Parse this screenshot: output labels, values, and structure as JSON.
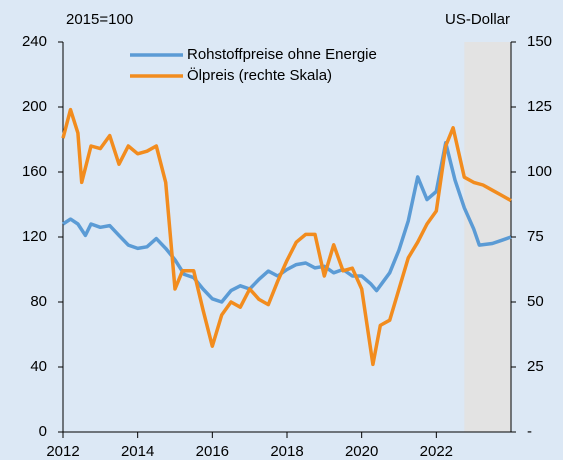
{
  "chart_data": {
    "type": "line",
    "left_axis_label": "2015=100",
    "right_axis_label": "US-Dollar",
    "xlim": [
      2012,
      2024
    ],
    "xticks": [
      2012,
      2014,
      2016,
      2018,
      2020,
      2022
    ],
    "ylim": [
      0,
      240
    ],
    "yticks": [
      0,
      40,
      80,
      120,
      160,
      200,
      240
    ],
    "y2lim": [
      0,
      150
    ],
    "y2ticks": [
      {
        "value": 0,
        "label": "-"
      },
      25,
      50,
      75,
      100,
      125,
      150
    ],
    "shaded_x": [
      2022.75,
      2024
    ],
    "shade_color": "#e3e3e3",
    "series": [
      {
        "name": "Rohstoffpreise ohne Energie",
        "color": "#5b9bd5",
        "axis": "y",
        "x": [
          2012.0,
          2012.2,
          2012.4,
          2012.6,
          2012.75,
          2013.0,
          2013.25,
          2013.5,
          2013.75,
          2014.0,
          2014.25,
          2014.5,
          2014.75,
          2015.0,
          2015.25,
          2015.5,
          2015.75,
          2016.0,
          2016.25,
          2016.5,
          2016.75,
          2017.0,
          2017.25,
          2017.5,
          2017.75,
          2018.0,
          2018.25,
          2018.5,
          2018.75,
          2019.0,
          2019.25,
          2019.5,
          2019.75,
          2020.0,
          2020.25,
          2020.4,
          2020.75,
          2021.0,
          2021.25,
          2021.5,
          2021.75,
          2022.0,
          2022.25,
          2022.5,
          2022.75,
          2023.0,
          2023.15,
          2023.5,
          2023.75,
          2024.0
        ],
        "values": [
          128,
          131,
          128,
          121,
          128,
          126,
          127,
          121,
          115,
          113,
          114,
          119,
          113,
          106,
          97,
          95,
          88,
          82,
          80,
          87,
          90,
          88,
          94,
          99,
          96,
          100,
          103,
          104,
          101,
          102,
          98,
          100,
          96,
          96,
          91,
          87,
          98,
          112,
          130,
          157,
          143,
          148,
          178,
          155,
          138,
          125,
          115,
          116,
          118,
          120
        ]
      },
      {
        "name": "Ölpreis (rechte Skala)",
        "color": "#f28c1e",
        "axis": "y2",
        "x": [
          2012.0,
          2012.2,
          2012.4,
          2012.5,
          2012.75,
          2013.0,
          2013.25,
          2013.5,
          2013.75,
          2014.0,
          2014.25,
          2014.5,
          2014.75,
          2015.0,
          2015.2,
          2015.5,
          2015.75,
          2016.0,
          2016.25,
          2016.5,
          2016.75,
          2017.0,
          2017.25,
          2017.5,
          2017.75,
          2018.0,
          2018.25,
          2018.5,
          2018.75,
          2019.0,
          2019.25,
          2019.5,
          2019.75,
          2020.0,
          2020.3,
          2020.5,
          2020.75,
          2021.0,
          2021.25,
          2021.5,
          2021.75,
          2022.0,
          2022.25,
          2022.45,
          2022.75,
          2023.0,
          2023.25,
          2023.5,
          2023.75,
          2024.0
        ],
        "values": [
          113,
          124,
          115,
          96,
          110,
          109,
          114,
          103,
          110,
          107,
          108,
          110,
          96,
          55,
          62,
          62,
          47,
          33,
          45,
          50,
          48,
          55,
          51,
          49,
          58,
          66,
          73,
          76,
          76,
          60,
          72,
          62,
          63,
          55,
          26,
          41,
          43,
          55,
          67,
          73,
          80,
          85,
          110,
          117,
          98,
          96,
          95,
          93,
          91,
          89
        ]
      }
    ]
  }
}
